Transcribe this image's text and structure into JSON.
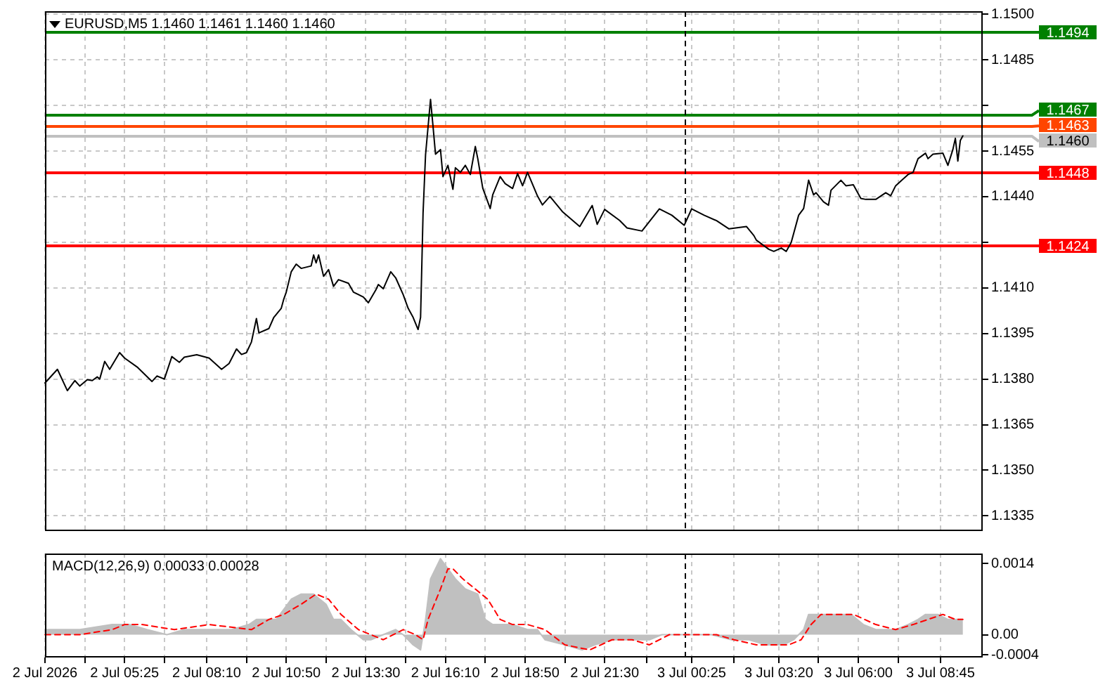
{
  "chart_data": [
    {
      "type": "line",
      "title": "EURUSD,M5 1.1460 1.1461 1.1460 1.1460",
      "series": [
        {
          "color": "#000000",
          "x": [
            "2026-07-02T02:45",
            "2026-07-02T03:10",
            "2026-07-02T03:30",
            "2026-07-02T03:45",
            "2026-07-02T03:55",
            "2026-07-02T04:10",
            "2026-07-02T04:20",
            "2026-07-02T04:30",
            "2026-07-02T04:35",
            "2026-07-02T04:45",
            "2026-07-02T04:55",
            "2026-07-02T05:15",
            "2026-07-02T05:25",
            "2026-07-02T05:50",
            "2026-07-02T06:20",
            "2026-07-02T06:30",
            "2026-07-02T06:45",
            "2026-07-02T07:00",
            "2026-07-02T07:15",
            "2026-07-02T07:25",
            "2026-07-02T07:50",
            "2026-07-02T08:15",
            "2026-07-02T08:40",
            "2026-07-02T08:55",
            "2026-07-02T09:10",
            "2026-07-02T09:20",
            "2026-07-02T09:30",
            "2026-07-02T09:40",
            "2026-07-02T09:50",
            "2026-07-02T09:55",
            "2026-07-02T10:15",
            "2026-07-02T10:25",
            "2026-07-02T10:40",
            "2026-07-02T10:45",
            "2026-07-02T10:50",
            "2026-07-02T11:00",
            "2026-07-02T11:10",
            "2026-07-02T11:20",
            "2026-07-02T11:40",
            "2026-07-02T11:45",
            "2026-07-02T11:50",
            "2026-07-02T11:55",
            "2026-07-02T12:05",
            "2026-07-02T12:15",
            "2026-07-02T12:25",
            "2026-07-02T12:35",
            "2026-07-02T12:55",
            "2026-07-02T13:05",
            "2026-07-02T13:25",
            "2026-07-02T13:35",
            "2026-07-02T13:50",
            "2026-07-02T13:55",
            "2026-07-02T14:05",
            "2026-07-02T14:20",
            "2026-07-02T14:30",
            "2026-07-02T14:45",
            "2026-07-02T14:55",
            "2026-07-02T15:05",
            "2026-07-02T15:15",
            "2026-07-02T15:20",
            "2026-07-02T15:25",
            "2026-07-02T15:30",
            "2026-07-02T15:40",
            "2026-07-02T15:45",
            "2026-07-02T15:50",
            "2026-07-02T16:00",
            "2026-07-02T16:05",
            "2026-07-02T16:15",
            "2026-07-02T16:25",
            "2026-07-02T16:30",
            "2026-07-02T16:40",
            "2026-07-02T16:50",
            "2026-07-02T17:00",
            "2026-07-02T17:10",
            "2026-07-02T17:15",
            "2026-07-02T17:25",
            "2026-07-02T17:40",
            "2026-07-02T17:45",
            "2026-07-02T18:00",
            "2026-07-02T18:10",
            "2026-07-02T18:25",
            "2026-07-02T18:35",
            "2026-07-02T18:45",
            "2026-07-02T18:55",
            "2026-07-02T19:15",
            "2026-07-02T19:25",
            "2026-07-02T19:40",
            "2026-07-02T20:05",
            "2026-07-02T20:40",
            "2026-07-02T21:05",
            "2026-07-02T21:15",
            "2026-07-02T21:30",
            "2026-07-02T22:00",
            "2026-07-02T22:15",
            "2026-07-02T22:45",
            "2026-07-02T23:20",
            "2026-07-02T23:45",
            "2026-07-03T00:10",
            "2026-07-03T00:25",
            "2026-07-03T00:50",
            "2026-07-03T01:15",
            "2026-07-03T01:40",
            "2026-07-03T02:15",
            "2026-07-03T02:30",
            "2026-07-03T02:35",
            "2026-07-03T03:00",
            "2026-07-03T03:10",
            "2026-07-03T03:25",
            "2026-07-03T03:35",
            "2026-07-03T03:45",
            "2026-07-03T04:00",
            "2026-07-03T04:10",
            "2026-07-03T04:20",
            "2026-07-03T04:30",
            "2026-07-03T04:35",
            "2026-07-03T04:50",
            "2026-07-03T05:00",
            "2026-07-03T05:05",
            "2026-07-03T05:25",
            "2026-07-03T05:35",
            "2026-07-03T05:50",
            "2026-07-03T06:05",
            "2026-07-03T06:15",
            "2026-07-03T06:35",
            "2026-07-03T06:55",
            "2026-07-03T07:05",
            "2026-07-03T07:15",
            "2026-07-03T07:40",
            "2026-07-03T07:50",
            "2026-07-03T08:00",
            "2026-07-03T08:15",
            "2026-07-03T08:20",
            "2026-07-03T08:30",
            "2026-07-03T08:50",
            "2026-07-03T09:00",
            "2026-07-03T09:10",
            "2026-07-03T09:15",
            "2026-07-03T09:20",
            "2026-07-03T09:25",
            "2026-07-03T09:30"
          ],
          "values": [
            1.13787,
            1.13832,
            1.13762,
            1.13795,
            1.13777,
            1.13798,
            1.13795,
            1.13807,
            1.138,
            1.13858,
            1.13832,
            1.13887,
            1.13869,
            1.1384,
            1.13792,
            1.1381,
            1.138,
            1.13874,
            1.13855,
            1.13872,
            1.1388,
            1.13869,
            1.13832,
            1.13851,
            1.13899,
            1.13881,
            1.13887,
            1.13922,
            1.13999,
            1.13952,
            1.13966,
            1.14003,
            1.14033,
            1.14063,
            1.14086,
            1.14153,
            1.14178,
            1.14164,
            1.14172,
            1.14208,
            1.14182,
            1.14208,
            1.14138,
            1.1416,
            1.14105,
            1.14127,
            1.14115,
            1.14086,
            1.1407,
            1.14051,
            1.14093,
            1.14111,
            1.14097,
            1.14153,
            1.14133,
            1.14078,
            1.14033,
            1.14003,
            1.13963,
            1.14003,
            1.14346,
            1.14538,
            1.1472,
            1.14632,
            1.1454,
            1.14555,
            1.14466,
            1.14503,
            1.14424,
            1.14495,
            1.1448,
            1.14503,
            1.14473,
            1.14565,
            1.14525,
            1.14428,
            1.14361,
            1.14406,
            1.14466,
            1.14443,
            1.14427,
            1.14476,
            1.14436,
            1.1448,
            1.14402,
            1.14373,
            1.14401,
            1.14351,
            1.14302,
            1.14371,
            1.14309,
            1.14358,
            1.14322,
            1.14297,
            1.14287,
            1.1436,
            1.14339,
            1.14306,
            1.1436,
            1.14339,
            1.14321,
            1.14294,
            1.14302,
            1.14272,
            1.14257,
            1.14227,
            1.1422,
            1.14231,
            1.1422,
            1.14249,
            1.14339,
            1.14361,
            1.14454,
            1.14406,
            1.14413,
            1.14383,
            1.14372,
            1.14421,
            1.14454,
            1.14436,
            1.14439,
            1.14394,
            1.14391,
            1.14391,
            1.14413,
            1.14403,
            1.14436,
            1.14473,
            1.1448,
            1.14525,
            1.14543,
            1.14525,
            1.1454,
            1.14543,
            1.14503,
            1.14555,
            1.14592,
            1.14517,
            1.14585,
            1.146
          ]
        }
      ],
      "xlim": [
        "2026-07-02T02:45",
        "2026-07-03T10:10"
      ],
      "xticks": [
        {
          "value": "2026-07-02T02:45",
          "label": null
        },
        {
          "value": "2026-07-02T04:05",
          "label": null
        },
        {
          "value": "2026-07-02T05:25",
          "label": null
        },
        {
          "value": "2026-07-02T06:45",
          "label": null
        },
        {
          "value": "2026-07-02T08:10",
          "label": null
        },
        {
          "value": "2026-07-02T09:30",
          "label": null
        },
        {
          "value": "2026-07-02T10:50",
          "label": null
        },
        {
          "value": "2026-07-02T12:10",
          "label": null
        },
        {
          "value": "2026-07-02T13:30",
          "label": null
        },
        {
          "value": "2026-07-02T14:50",
          "label": null
        },
        {
          "value": "2026-07-02T16:10",
          "label": null
        },
        {
          "value": "2026-07-02T17:30",
          "label": null
        },
        {
          "value": "2026-07-02T18:50",
          "label": null
        },
        {
          "value": "2026-07-02T20:10",
          "label": null
        },
        {
          "value": "2026-07-02T21:30",
          "label": null
        },
        {
          "value": "2026-07-02T22:55",
          "label": null
        },
        {
          "value": "2026-07-03T00:25",
          "label": null
        },
        {
          "value": "2026-07-03T01:50",
          "label": null
        },
        {
          "value": "2026-07-03T03:20",
          "label": null
        },
        {
          "value": "2026-07-03T04:40",
          "label": null
        },
        {
          "value": "2026-07-03T06:00",
          "label": null
        },
        {
          "value": "2026-07-03T07:20",
          "label": null
        },
        {
          "value": "2026-07-03T08:45",
          "label": null
        }
      ],
      "ylim": [
        1.133,
        1.1501
      ],
      "yticks": [
        {
          "value": 1.15,
          "label": "1.1500"
        },
        1.1485,
        {
          "value": 1.147,
          "label": null
        },
        1.1455,
        {
          "value": 1.144,
          "label": "1.1440"
        },
        {
          "value": 1.1425,
          "label": null
        },
        {
          "value": 1.141,
          "label": "1.1410"
        },
        1.1395,
        {
          "value": 1.138,
          "label": "1.1380"
        },
        1.1365,
        {
          "value": 1.135,
          "label": "1.1350"
        },
        1.1335
      ],
      "ref_lines": [
        {
          "axis": "y",
          "value": 1.1494,
          "label": "1.1494",
          "color": "#008000"
        },
        {
          "axis": "y",
          "value": 1.1467,
          "label": "1.1467",
          "color": "#008000"
        },
        {
          "axis": "y",
          "value": 1.1463,
          "label": "1.1463",
          "color": "#ff4500"
        },
        {
          "axis": "y",
          "value": 1.146,
          "label": "1.1460",
          "color": "#c0c0c0"
        },
        {
          "axis": "y",
          "value": 1.1448,
          "label": "1.1448",
          "color": "#ff0000"
        },
        {
          "axis": "y",
          "value": 1.1424,
          "label": "1.1424",
          "color": "#ff0000"
        },
        {
          "axis": "x",
          "value": "2026-07-03T00:10",
          "color": "#000000",
          "line_style": "dashed"
        }
      ],
      "grid": true,
      "legend": false,
      "tick_labels": "y",
      "marker": "none"
    },
    {
      "type": "area",
      "title": "MACD(12,26,9) 0.00033 0.00028",
      "series": [
        {
          "color": "#c0c0c0",
          "x": [
            "2026-07-02T02:45",
            "2026-07-02T03:55",
            "2026-07-02T05:00",
            "2026-07-02T05:35",
            "2026-07-02T06:10",
            "2026-07-02T06:50",
            "2026-07-02T07:25",
            "2026-07-02T08:05",
            "2026-07-02T09:00",
            "2026-07-02T09:35",
            "2026-07-02T09:50",
            "2026-07-02T10:30",
            "2026-07-02T11:00",
            "2026-07-02T11:20",
            "2026-07-02T11:45",
            "2026-07-02T12:10",
            "2026-07-02T12:25",
            "2026-07-02T12:40",
            "2026-07-02T13:00",
            "2026-07-02T13:25",
            "2026-07-02T13:40",
            "2026-07-02T14:05",
            "2026-07-02T14:30",
            "2026-07-02T14:45",
            "2026-07-02T15:05",
            "2026-07-02T15:20",
            "2026-07-02T15:30",
            "2026-07-02T15:40",
            "2026-07-02T16:00",
            "2026-07-02T16:15",
            "2026-07-02T16:30",
            "2026-07-02T16:50",
            "2026-07-02T17:15",
            "2026-07-02T17:30",
            "2026-07-02T17:45",
            "2026-07-02T18:05",
            "2026-07-02T18:25",
            "2026-07-02T18:55",
            "2026-07-02T19:15",
            "2026-07-02T19:30",
            "2026-07-02T20:10",
            "2026-07-02T20:45",
            "2026-07-02T21:10",
            "2026-07-02T21:45",
            "2026-07-02T22:15",
            "2026-07-02T23:00",
            "2026-07-02T23:25",
            "2026-07-02T23:45",
            "2026-07-03T00:30",
            "2026-07-03T01:05",
            "2026-07-03T01:45",
            "2026-07-03T02:20",
            "2026-07-03T02:55",
            "2026-07-03T03:30",
            "2026-07-03T03:50",
            "2026-07-03T04:10",
            "2026-07-03T04:20",
            "2026-07-03T04:35",
            "2026-07-03T05:00",
            "2026-07-03T05:45",
            "2026-07-03T06:10",
            "2026-07-03T06:35",
            "2026-07-03T07:15",
            "2026-07-03T07:40",
            "2026-07-03T08:00",
            "2026-07-03T08:15",
            "2026-07-03T08:40",
            "2026-07-03T09:00",
            "2026-07-03T09:15",
            "2026-07-03T09:30"
          ],
          "values": [
            0.0001,
            0.0001,
            0.0002,
            0.0002,
            0.0001,
            0,
            0.0001,
            0.0001,
            0.0001,
            0.0002,
            0.0003,
            0.0003,
            0.0007,
            0.0008,
            0.0008,
            0.0006,
            0.0003,
            0.0003,
            0.0001,
            -0.0001,
            -0.0001,
            0,
            0.0001,
            0,
            -0.0002,
            -0.0003,
            0.0003,
            0.0011,
            0.0015,
            0.0013,
            0.0011,
            0.0009,
            0.0008,
            0.0003,
            0.0002,
            0.0002,
            0.0002,
            0.0001,
            0.0001,
            -0.0001,
            -0.0002,
            -0.0003,
            -0.0002,
            -0.0001,
            -0.0001,
            -0.0001,
            0,
            0,
            0,
            0,
            -0.0001,
            -0.0001,
            -0.0002,
            -0.0002,
            -0.0001,
            0.0001,
            0.0004,
            0.0004,
            0.0004,
            0.0004,
            0.0002,
            0.0001,
            0.0001,
            0.0002,
            0.0003,
            0.0004,
            0.0004,
            0.0003,
            0.0003,
            0.0003
          ]
        },
        {
          "type": "line",
          "color": "#ff0000",
          "line_style": "dashed",
          "x": [
            "2026-07-02T02:45",
            "2026-07-02T03:55",
            "2026-07-02T05:00",
            "2026-07-02T05:25",
            "2026-07-02T06:00",
            "2026-07-02T07:05",
            "2026-07-02T08:15",
            "2026-07-02T09:40",
            "2026-07-02T10:15",
            "2026-07-02T10:45",
            "2026-07-02T11:20",
            "2026-07-02T11:50",
            "2026-07-02T12:15",
            "2026-07-02T12:40",
            "2026-07-02T13:15",
            "2026-07-02T13:40",
            "2026-07-02T14:05",
            "2026-07-02T14:45",
            "2026-07-02T15:10",
            "2026-07-02T15:25",
            "2026-07-02T15:35",
            "2026-07-02T16:00",
            "2026-07-02T16:15",
            "2026-07-02T16:25",
            "2026-07-02T16:45",
            "2026-07-02T17:10",
            "2026-07-02T17:35",
            "2026-07-02T18:00",
            "2026-07-02T18:25",
            "2026-07-02T18:55",
            "2026-07-02T19:30",
            "2026-07-02T20:10",
            "2026-07-02T21:00",
            "2026-07-02T21:45",
            "2026-07-02T22:25",
            "2026-07-02T23:00",
            "2026-07-02T23:40",
            "2026-07-03T00:30",
            "2026-07-03T01:15",
            "2026-07-03T01:50",
            "2026-07-03T02:35",
            "2026-07-03T03:15",
            "2026-07-03T03:40",
            "2026-07-03T04:05",
            "2026-07-03T04:25",
            "2026-07-03T04:45",
            "2026-07-03T05:10",
            "2026-07-03T05:50",
            "2026-07-03T06:35",
            "2026-07-03T07:15",
            "2026-07-03T07:50",
            "2026-07-03T08:20",
            "2026-07-03T08:50",
            "2026-07-03T09:15",
            "2026-07-03T09:30"
          ],
          "values": [
            0,
            0,
            0.0001,
            0.0002,
            0.0002,
            0.0001,
            0.0002,
            0.0001,
            0.0003,
            0.0004,
            0.0006,
            0.0008,
            0.0007,
            0.0004,
            0.0001,
            0,
            -0.0001,
            0.0001,
            0,
            -0.0001,
            0.0003,
            0.0009,
            0.0013,
            0.0013,
            0.0011,
            0.0009,
            0.0007,
            0.0003,
            0.0002,
            0.0002,
            0.0001,
            -0.0002,
            -0.0003,
            -0.0001,
            -0.0001,
            -0.0002,
            0,
            0,
            0,
            -0.0001,
            -0.0002,
            -0.0002,
            -0.0002,
            -0.0001,
            0.0002,
            0.0004,
            0.0004,
            0.0004,
            0.0002,
            0.0001,
            0.0002,
            0.0003,
            0.0004,
            0.0003,
            0.0003
          ]
        }
      ],
      "xlim": [
        "2026-07-02T02:45",
        "2026-07-03T10:10"
      ],
      "xticks": [
        {
          "value": "2026-07-02T02:45",
          "label": "2 Jul 2026"
        },
        {
          "value": "2026-07-02T04:05",
          "label": null
        },
        {
          "value": "2026-07-02T05:25",
          "label": "2 Jul 05:25"
        },
        {
          "value": "2026-07-02T06:45",
          "label": null
        },
        {
          "value": "2026-07-02T08:10",
          "label": "2 Jul 08:10"
        },
        {
          "value": "2026-07-02T09:30",
          "label": null
        },
        {
          "value": "2026-07-02T10:50",
          "label": "2 Jul 10:50"
        },
        {
          "value": "2026-07-02T12:10",
          "label": null
        },
        {
          "value": "2026-07-02T13:30",
          "label": "2 Jul 13:30"
        },
        {
          "value": "2026-07-02T14:50",
          "label": null
        },
        {
          "value": "2026-07-02T16:10",
          "label": "2 Jul 16:10"
        },
        {
          "value": "2026-07-02T17:30",
          "label": null
        },
        {
          "value": "2026-07-02T18:50",
          "label": "2 Jul 18:50"
        },
        {
          "value": "2026-07-02T20:10",
          "label": null
        },
        {
          "value": "2026-07-02T21:30",
          "label": "2 Jul 21:30"
        },
        {
          "value": "2026-07-02T22:55",
          "label": null
        },
        {
          "value": "2026-07-03T00:25",
          "label": "3 Jul 00:25"
        },
        {
          "value": "2026-07-03T01:50",
          "label": null
        },
        {
          "value": "2026-07-03T03:20",
          "label": "3 Jul 03:20"
        },
        {
          "value": "2026-07-03T04:40",
          "label": null
        },
        {
          "value": "2026-07-03T06:00",
          "label": "3 Jul 06:00"
        },
        {
          "value": "2026-07-03T07:20",
          "label": null
        },
        {
          "value": "2026-07-03T08:45",
          "label": "3 Jul 08:45"
        }
      ],
      "ylim": [
        -0.00045,
        0.0016
      ],
      "yticks": [
        0.0014,
        {
          "value": 0,
          "label": "0.00"
        },
        -0.0004
      ],
      "ref_lines": [
        {
          "axis": "x",
          "value": "2026-07-03T00:10",
          "color": "#000000",
          "line_style": "dashed"
        }
      ],
      "grid": "x",
      "legend": false,
      "marker": "none"
    }
  ]
}
